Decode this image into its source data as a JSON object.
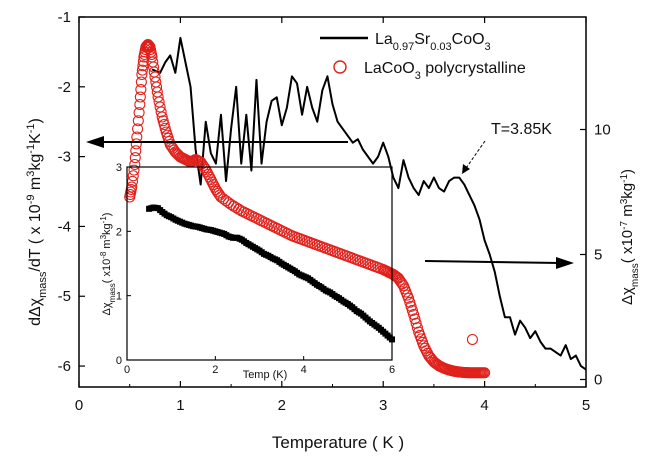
{
  "chart_data": [
    {
      "type": "line",
      "xlabel": "Temperature ( K )",
      "ylabel_left": "dΔχmass/dT ( x 10-9 m3kg-1K-1)",
      "ylabel_right": "Δχmass ( x10-7 m3kg-1)",
      "xlim": [
        0,
        5
      ],
      "xticks": [
        "0",
        "1",
        "2",
        "3",
        "4",
        "5"
      ],
      "ylim_left": [
        -6.3,
        -1
      ],
      "yticks_left": [
        "-1",
        "-2",
        "-3",
        "-4",
        "-5",
        "-6"
      ],
      "ylim_right": [
        -0.3,
        14.5
      ],
      "yticks_right": [
        "0",
        "5",
        "10"
      ],
      "legend": {
        "position": "top-right",
        "entries": [
          {
            "label": "La0.97Sr0.03CoO3",
            "marker": "line",
            "color": "#000000"
          },
          {
            "label": "LaCoO3 polycrystalline",
            "marker": "open-circle",
            "color": "#e0201b"
          }
        ]
      },
      "annotation": "T=3.85K",
      "series": [
        {
          "name": "La0.97Sr0.03CoO3",
          "axis": "left",
          "color": "#000000",
          "x": [
            0.72,
            0.8,
            0.85,
            0.9,
            0.95,
            1.0,
            1.05,
            1.1,
            1.15,
            1.2,
            1.25,
            1.3,
            1.35,
            1.4,
            1.45,
            1.5,
            1.55,
            1.6,
            1.65,
            1.7,
            1.75,
            1.8,
            1.85,
            1.9,
            1.95,
            2.0,
            2.05,
            2.1,
            2.15,
            2.2,
            2.25,
            2.3,
            2.35,
            2.4,
            2.45,
            2.5,
            2.55,
            2.6,
            2.65,
            2.7,
            2.75,
            2.8,
            2.85,
            2.9,
            2.95,
            3.0,
            3.05,
            3.1,
            3.15,
            3.2,
            3.25,
            3.3,
            3.35,
            3.4,
            3.45,
            3.5,
            3.55,
            3.6,
            3.65,
            3.7,
            3.75,
            3.8,
            3.85,
            3.9,
            3.95,
            4.0,
            4.05,
            4.1,
            4.15,
            4.2,
            4.25,
            4.3,
            4.35,
            4.4,
            4.45,
            4.5,
            4.55,
            4.6,
            4.65,
            4.7,
            4.75,
            4.8,
            4.85,
            4.9,
            4.95,
            5.0
          ],
          "y": [
            -1.75,
            -1.8,
            -1.65,
            -1.55,
            -1.8,
            -1.3,
            -1.65,
            -2.0,
            -2.9,
            -3.4,
            -2.5,
            -2.95,
            -3.1,
            -2.4,
            -3.35,
            -2.6,
            -2.0,
            -3.1,
            -2.4,
            -3.2,
            -1.9,
            -3.1,
            -2.5,
            -2.2,
            -2.15,
            -2.55,
            -2.3,
            -1.85,
            -1.95,
            -2.4,
            -2.0,
            -2.3,
            -2.5,
            -2.05,
            -1.85,
            -2.25,
            -2.5,
            -2.6,
            -2.7,
            -2.8,
            -2.75,
            -2.9,
            -3.0,
            -3.1,
            -3.0,
            -2.8,
            -3.0,
            -3.3,
            -3.45,
            -3.05,
            -3.3,
            -3.45,
            -3.55,
            -3.35,
            -3.45,
            -3.3,
            -3.45,
            -3.5,
            -3.35,
            -3.3,
            -3.3,
            -3.4,
            -3.55,
            -3.7,
            -3.9,
            -4.2,
            -4.4,
            -4.65,
            -5.0,
            -5.3,
            -5.3,
            -5.55,
            -5.35,
            -5.45,
            -5.6,
            -5.5,
            -5.65,
            -5.75,
            -5.75,
            -5.8,
            -5.85,
            -5.7,
            -5.9,
            -5.85,
            -6.0,
            -6.05
          ]
        },
        {
          "name": "LaCoO3 polycrystalline",
          "axis": "right",
          "color": "#e0201b",
          "marker": "open-circle",
          "x": [
            0.5,
            0.52,
            0.55,
            0.57,
            0.6,
            0.62,
            0.64,
            0.66,
            0.68,
            0.7,
            0.72,
            0.75,
            0.78,
            0.82,
            0.86,
            0.9,
            0.95,
            1.0,
            1.05,
            1.1,
            1.15,
            1.2,
            1.25,
            1.3,
            1.35,
            1.4,
            1.5,
            1.6,
            1.7,
            1.8,
            1.9,
            2.0,
            2.1,
            2.2,
            2.3,
            2.4,
            2.5,
            2.6,
            2.7,
            2.8,
            2.9,
            3.0,
            3.05,
            3.1,
            3.15,
            3.2,
            3.25,
            3.3,
            3.35,
            3.4,
            3.45,
            3.5,
            3.55,
            3.6,
            3.65,
            3.7,
            3.75,
            3.8,
            3.85,
            3.9,
            3.95,
            4.0,
            3.88
          ],
          "y": [
            7.3,
            7.7,
            8.6,
            9.7,
            11.0,
            12.2,
            12.9,
            13.3,
            13.4,
            13.3,
            12.9,
            12.1,
            11.3,
            10.5,
            9.9,
            9.4,
            9.1,
            8.9,
            8.8,
            8.7,
            8.8,
            8.7,
            8.4,
            8.0,
            7.6,
            7.3,
            7.0,
            6.75,
            6.55,
            6.35,
            6.15,
            5.95,
            5.75,
            5.6,
            5.45,
            5.3,
            5.15,
            5.0,
            4.85,
            4.7,
            4.55,
            4.4,
            4.3,
            4.2,
            4.05,
            3.75,
            3.25,
            2.6,
            1.9,
            1.35,
            0.95,
            0.7,
            0.55,
            0.45,
            0.38,
            0.33,
            0.3,
            0.28,
            0.27,
            0.27,
            0.27,
            0.27,
            1.6
          ]
        }
      ]
    },
    {
      "type": "scatter",
      "title": "",
      "xlabel": "Temp (K)",
      "ylabel": "Δχmass ( x10-8 m3kg-1)",
      "xlim": [
        0,
        6
      ],
      "xticks": [
        "0",
        "2",
        "4",
        "6"
      ],
      "ylim": [
        0,
        3
      ],
      "yticks": [
        "0",
        "1",
        "2",
        "3"
      ],
      "series": [
        {
          "marker": "filled-square",
          "color": "#000000",
          "x": [
            0.5,
            0.6,
            0.7,
            0.8,
            0.9,
            1.0,
            1.1,
            1.2,
            1.3,
            1.4,
            1.5,
            1.6,
            1.7,
            1.8,
            1.9,
            2.0,
            2.1,
            2.2,
            2.3,
            2.4,
            2.5,
            2.6,
            2.7,
            2.8,
            2.9,
            3.0,
            3.1,
            3.2,
            3.3,
            3.4,
            3.5,
            3.6,
            3.7,
            3.8,
            3.9,
            4.0,
            4.1,
            4.2,
            4.3,
            4.4,
            4.5,
            4.6,
            4.7,
            4.8,
            4.9,
            5.0,
            5.1,
            5.2,
            5.3,
            5.4,
            5.5,
            5.6,
            5.7,
            5.8,
            5.9,
            6.0
          ],
          "y": [
            2.35,
            2.37,
            2.36,
            2.3,
            2.25,
            2.22,
            2.18,
            2.15,
            2.12,
            2.1,
            2.08,
            2.07,
            2.05,
            2.03,
            2.02,
            2.0,
            1.98,
            1.96,
            1.92,
            1.9,
            1.9,
            1.87,
            1.82,
            1.78,
            1.74,
            1.7,
            1.65,
            1.62,
            1.58,
            1.55,
            1.5,
            1.46,
            1.42,
            1.38,
            1.33,
            1.3,
            1.27,
            1.22,
            1.17,
            1.13,
            1.08,
            1.05,
            1.0,
            0.96,
            0.91,
            0.87,
            0.82,
            0.76,
            0.72,
            0.66,
            0.6,
            0.55,
            0.5,
            0.44,
            0.38,
            0.32
          ]
        }
      ]
    }
  ]
}
